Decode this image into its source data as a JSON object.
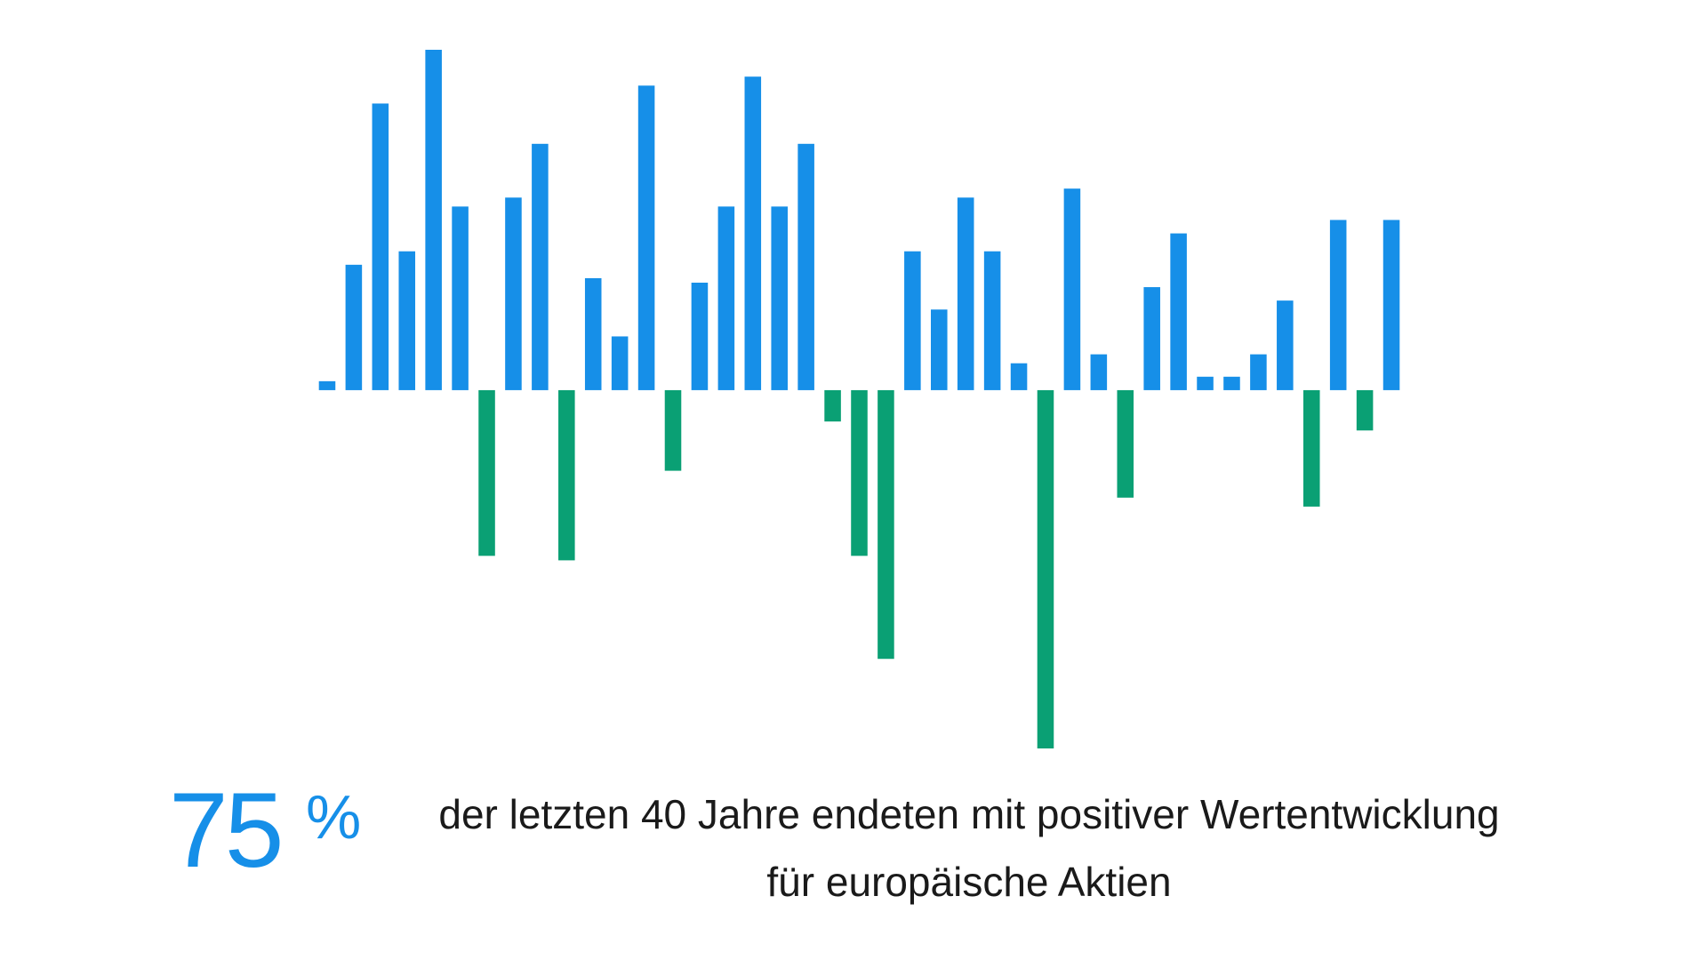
{
  "chart_data": {
    "type": "bar",
    "title": "",
    "xlabel": "",
    "ylabel": "",
    "grid": false,
    "legend": "none",
    "ylim": [
      -40,
      38
    ],
    "values": [
      1,
      14,
      32,
      15.5,
      38,
      20.5,
      -18.5,
      21.5,
      27.5,
      -19,
      12.5,
      6,
      34,
      -9,
      12,
      20.5,
      35,
      20.5,
      27.5,
      -3.5,
      -18.5,
      -30,
      15.5,
      9,
      21.5,
      15.5,
      3,
      -40,
      22.5,
      4,
      -12,
      11.5,
      17.5,
      1.5,
      1.5,
      4,
      10,
      -13,
      19,
      -4.5,
      19
    ],
    "colors": {
      "positive": "#168fe8",
      "negative": "#0aa074"
    }
  },
  "stat": {
    "number": "75",
    "unit": "%"
  },
  "headline": {
    "line1": "der letzten 40 Jahre endeten mit positiver Wertentwicklung",
    "line2": "für europäische Aktien"
  }
}
